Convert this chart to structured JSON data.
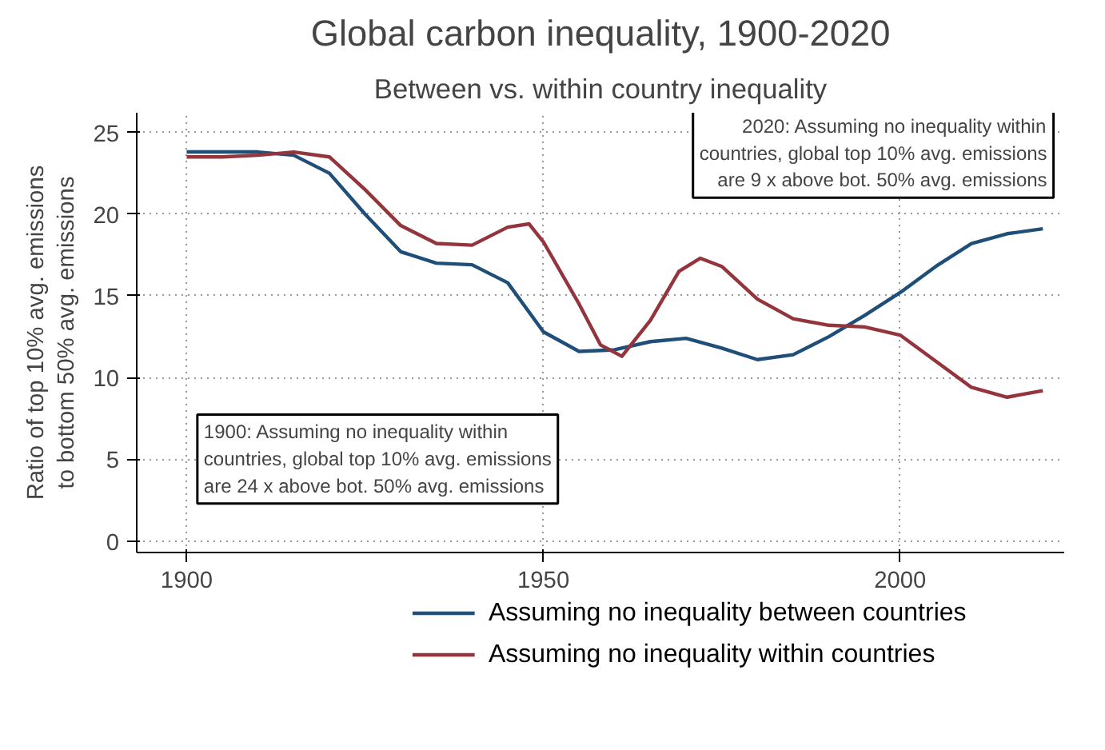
{
  "chart_data": {
    "type": "line",
    "title": "Global carbon inequality, 1900-2020",
    "subtitle": "Between vs. within country inequality",
    "ylabel": "Ratio of top 10% avg. emissions\nto bottom 50% avg. emissions",
    "xlim": [
      1893,
      2023
    ],
    "ylim": [
      -0.7,
      26.2
    ],
    "xticks": [
      1900,
      1950,
      2000
    ],
    "yticks": [
      0,
      5,
      10,
      15,
      20,
      25
    ],
    "grid": true,
    "legend": "bottom",
    "line_style": "solid",
    "annotations": [
      "1900: Assuming no inequality within countries, global top 10% avg. emissions are 24 x above bot. 50% avg. emissions",
      "2020: Assuming no inequality within countries, global top 10% avg. emissions are 9 x above bot. 50% avg. emissions"
    ],
    "series": [
      {
        "name": "Assuming no inequality between countries",
        "color": "#1f4e79",
        "x": [
          1900,
          1905,
          1910,
          1915,
          1920,
          1925,
          1930,
          1935,
          1940,
          1945,
          1950,
          1955,
          1960,
          1965,
          1970,
          1975,
          1980,
          1985,
          1990,
          1995,
          2000,
          2005,
          2010,
          2015,
          2020
        ],
        "values": [
          23.8,
          23.8,
          23.8,
          23.6,
          22.5,
          20,
          17.7,
          17,
          16.9,
          15.8,
          12.8,
          11.6,
          11.7,
          12.2,
          12.4,
          11.8,
          11.1,
          11.4,
          12.5,
          13.8,
          15.2,
          16.8,
          18.2,
          18.8,
          19.1
        ]
      },
      {
        "name": "Assuming no inequality within countries",
        "color": "#94343c",
        "x": [
          1900,
          1905,
          1910,
          1915,
          1920,
          1925,
          1930,
          1935,
          1940,
          1945,
          1948,
          1950,
          1955,
          1958,
          1961,
          1965,
          1969,
          1972,
          1975,
          1980,
          1985,
          1990,
          1995,
          2000,
          2005,
          2010,
          2015,
          2020
        ],
        "values": [
          23.5,
          23.5,
          23.6,
          23.8,
          23.5,
          21.5,
          19.3,
          18.2,
          18.1,
          19.2,
          19.4,
          18.3,
          14.5,
          12,
          11.3,
          13.5,
          16.5,
          17.3,
          16.8,
          14.8,
          13.6,
          13.2,
          13.1,
          12.6,
          11,
          9.4,
          8.8,
          9.2
        ]
      }
    ]
  }
}
